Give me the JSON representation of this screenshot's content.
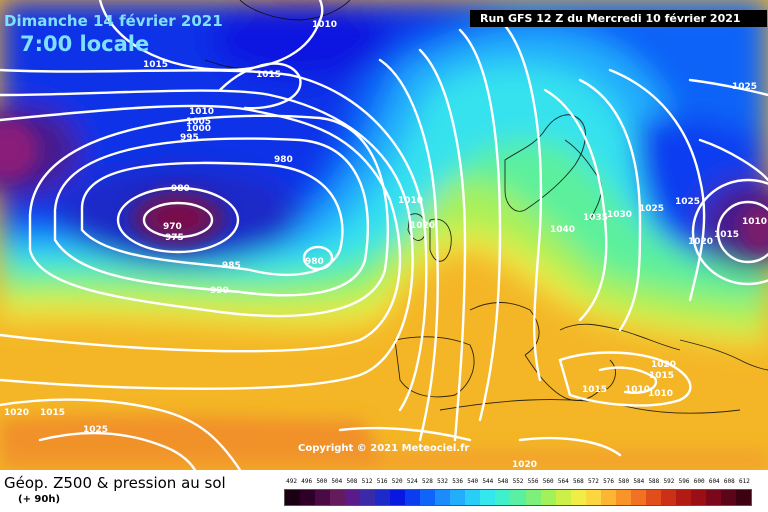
{
  "header": {
    "date": "Dimanche 14 février 2021",
    "time": "7:00 locale",
    "run": "Run GFS 12 Z du Mercredi 10 février 2021"
  },
  "footer": {
    "title": "Géop. Z500 & pression au sol",
    "lead": "(+ 90h)",
    "copyright": "Copyright © 2021 Meteociel.fr"
  },
  "legend": {
    "values": [
      "492",
      "496",
      "500",
      "504",
      "508",
      "512",
      "516",
      "520",
      "524",
      "528",
      "532",
      "536",
      "540",
      "544",
      "548",
      "552",
      "556",
      "560",
      "564",
      "568",
      "572",
      "576",
      "580",
      "584",
      "588",
      "592",
      "596",
      "600",
      "604",
      "608",
      "612"
    ],
    "colors": [
      "#1a0012",
      "#2e0028",
      "#4a0a44",
      "#661a5e",
      "#5a1a8a",
      "#3a2aa8",
      "#1c2ac8",
      "#0818e0",
      "#0a3cf0",
      "#1064f8",
      "#1a8cfc",
      "#22aefc",
      "#28cdf8",
      "#34e6ee",
      "#3ef0cc",
      "#5af0a2",
      "#7cf07a",
      "#a4f05a",
      "#ccf048",
      "#f0ee46",
      "#fcd640",
      "#fcb634",
      "#f8942a",
      "#f07222",
      "#e24e1a",
      "#cc3016",
      "#b21a14",
      "#9a0e16",
      "#7c061a",
      "#5c0418",
      "#3c0212"
    ]
  },
  "pressure_labels": [
    "1010",
    "1015",
    "1015",
    "1010",
    "1005",
    "1000",
    "995",
    "980",
    "980",
    "970",
    "975",
    "985",
    "990",
    "980",
    "1010",
    "1020",
    "1035",
    "1030",
    "1040",
    "1025",
    "1025",
    "1020",
    "1015",
    "1025",
    "1010",
    "1015",
    "1020",
    "1015",
    "1010",
    "1010",
    "1015",
    "1020",
    "1025",
    "1020"
  ]
}
